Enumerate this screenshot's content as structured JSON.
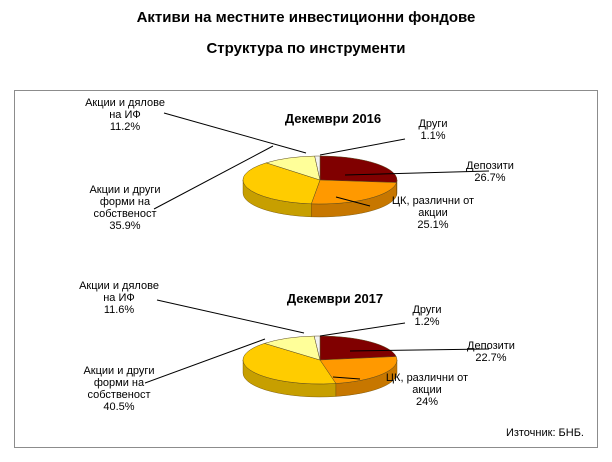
{
  "title": "Активи на местните инвестиционни фондове",
  "subtitle": "Структура по инструменти",
  "source": "Източник: БНБ.",
  "chart_data": [
    {
      "type": "pie",
      "title": "Декември 2016",
      "slices": [
        {
          "label_lines": [
            "Депозити"
          ],
          "value": 26.7,
          "value_label": "26.7%",
          "color": "#800000"
        },
        {
          "label_lines": [
            "ЦК, различни от",
            "акции"
          ],
          "value": 25.1,
          "value_label": "25.1%",
          "color": "#ff9900"
        },
        {
          "label_lines": [
            "Акции и други",
            "форми на",
            "собственост"
          ],
          "value": 35.9,
          "value_label": "35.9%",
          "color": "#ffcc00"
        },
        {
          "label_lines": [
            "Акции и дялове",
            "на ИФ"
          ],
          "value": 11.2,
          "value_label": "11.2%",
          "color": "#ffff99"
        },
        {
          "label_lines": [
            "Други"
          ],
          "value": 1.1,
          "value_label": "1.1%",
          "color": "#f2f2f2"
        }
      ]
    },
    {
      "type": "pie",
      "title": "Декември 2017",
      "slices": [
        {
          "label_lines": [
            "Депозити"
          ],
          "value": 22.7,
          "value_label": "22.7%",
          "color": "#800000"
        },
        {
          "label_lines": [
            "ЦК, различни от",
            "акции"
          ],
          "value": 24,
          "value_label": "24%",
          "color": "#ff9900"
        },
        {
          "label_lines": [
            "Акции и други",
            "форми на",
            "собственост"
          ],
          "value": 40.5,
          "value_label": "40.5%",
          "color": "#ffcc00"
        },
        {
          "label_lines": [
            "Акции и дялове",
            "на ИФ"
          ],
          "value": 11.6,
          "value_label": "11.6%",
          "color": "#ffff99"
        },
        {
          "label_lines": [
            "Други"
          ],
          "value": 1.2,
          "value_label": "1.2%",
          "color": "#f2f2f2"
        }
      ]
    }
  ]
}
